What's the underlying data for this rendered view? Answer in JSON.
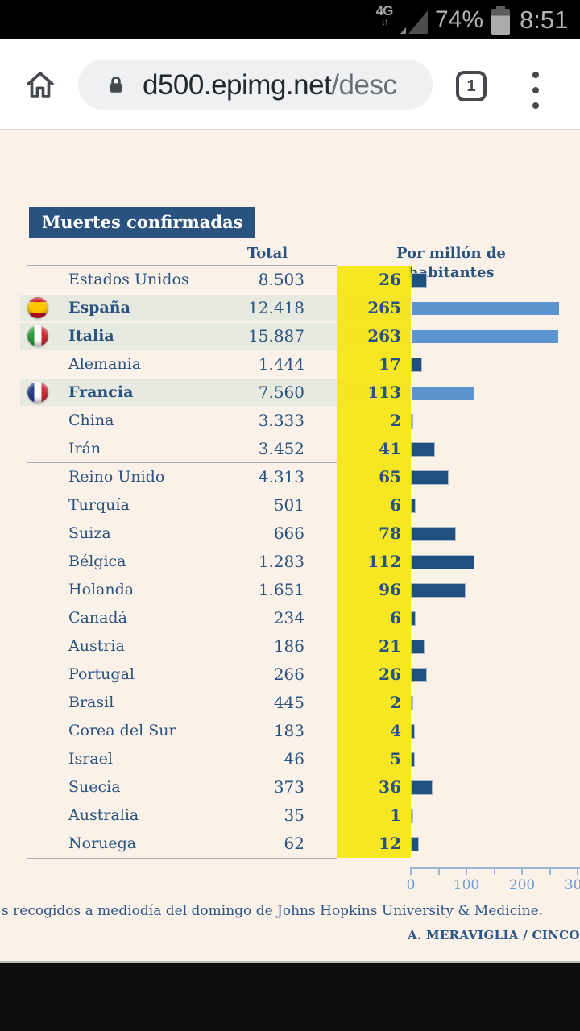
{
  "status_bar": {
    "network": "4G",
    "network_arrows": "↓↑",
    "battery_percent": "74%",
    "time": "8:51"
  },
  "browser": {
    "url_host": "d500.epimg.net",
    "url_path": "/desc",
    "tab_count": "1"
  },
  "chart": {
    "footer": "s recogidos a mediodía del domingo de Johns Hopkins University & Medicine.",
    "credit": "A. MERAVIGLIA / CINCO DÍAS"
  },
  "chart_data": {
    "type": "bar",
    "title": "Muertes confirmadas",
    "columns": [
      "Total",
      "Por millón de habitantes"
    ],
    "rows": [
      {
        "country": "Estados Unidos",
        "total": "8.503",
        "per_million": 26,
        "highlighted": false,
        "flag": null
      },
      {
        "country": "España",
        "total": "12.418",
        "per_million": 265,
        "highlighted": true,
        "flag": "es"
      },
      {
        "country": "Italia",
        "total": "15.887",
        "per_million": 263,
        "highlighted": true,
        "flag": "it"
      },
      {
        "country": "Alemania",
        "total": "1.444",
        "per_million": 17,
        "highlighted": false,
        "flag": null
      },
      {
        "country": "Francia",
        "total": "7.560",
        "per_million": 113,
        "highlighted": true,
        "flag": "fr"
      },
      {
        "country": "China",
        "total": "3.333",
        "per_million": 2,
        "highlighted": false,
        "flag": null
      },
      {
        "country": "Irán",
        "total": "3.452",
        "per_million": 41,
        "highlighted": false,
        "flag": null
      },
      {
        "country": "Reino Unido",
        "total": "4.313",
        "per_million": 65,
        "highlighted": false,
        "flag": null
      },
      {
        "country": "Turquía",
        "total": "501",
        "per_million": 6,
        "highlighted": false,
        "flag": null
      },
      {
        "country": "Suiza",
        "total": "666",
        "per_million": 78,
        "highlighted": false,
        "flag": null
      },
      {
        "country": "Bélgica",
        "total": "1.283",
        "per_million": 112,
        "highlighted": false,
        "flag": null
      },
      {
        "country": "Holanda",
        "total": "1.651",
        "per_million": 96,
        "highlighted": false,
        "flag": null
      },
      {
        "country": "Canadá",
        "total": "234",
        "per_million": 6,
        "highlighted": false,
        "flag": null
      },
      {
        "country": "Austria",
        "total": "186",
        "per_million": 21,
        "highlighted": false,
        "flag": null
      },
      {
        "country": "Portugal",
        "total": "266",
        "per_million": 26,
        "highlighted": false,
        "flag": null
      },
      {
        "country": "Brasil",
        "total": "445",
        "per_million": 2,
        "highlighted": false,
        "flag": null
      },
      {
        "country": "Corea del Sur",
        "total": "183",
        "per_million": 4,
        "highlighted": false,
        "flag": null
      },
      {
        "country": "Israel",
        "total": "46",
        "per_million": 5,
        "highlighted": false,
        "flag": null
      },
      {
        "country": "Suecia",
        "total": "373",
        "per_million": 36,
        "highlighted": false,
        "flag": null
      },
      {
        "country": "Australia",
        "total": "35",
        "per_million": 1,
        "highlighted": false,
        "flag": null
      },
      {
        "country": "Noruega",
        "total": "62",
        "per_million": 12,
        "highlighted": false,
        "flag": null
      }
    ],
    "separator_after_indexes": [
      6,
      13
    ],
    "x_axis": {
      "ticks": [
        0,
        50,
        100,
        150,
        200,
        250,
        300
      ],
      "labels": [
        "0",
        "100",
        "200",
        "300"
      ],
      "max": 300
    },
    "legend_position": "none",
    "colors": {
      "background": "#faf1e8",
      "text": "#29527f",
      "bar_default": "#20507f",
      "bar_highlight": "#5c94d0",
      "row_highlight": "#e7eae0",
      "column_highlight": "#f6e500"
    }
  }
}
